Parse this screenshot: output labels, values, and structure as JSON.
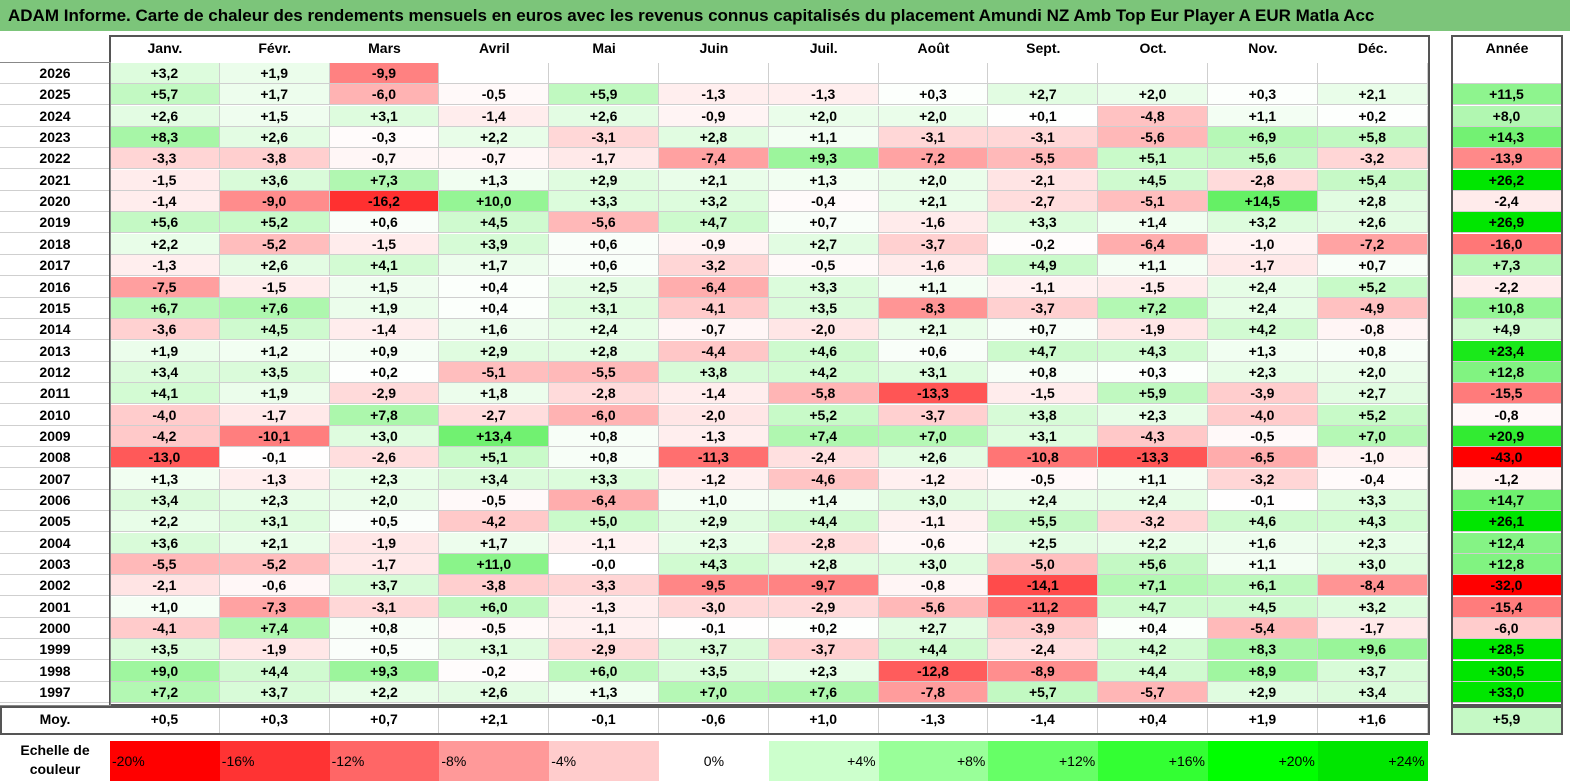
{
  "title": "ADAM Informe. Carte de chaleur des rendements mensuels en euros avec les revenus connus capitalisés du placement Amundi NZ Amb Top Eur Player A EUR Matla Acc",
  "chart_data": {
    "type": "heatmap",
    "columns": [
      "Janv.",
      "Févr.",
      "Mars",
      "Avril",
      "Mai",
      "Juin",
      "Juil.",
      "Août",
      "Sept.",
      "Oct.",
      "Nov.",
      "Déc."
    ],
    "year_column_label": "Année",
    "rows": [
      {
        "year": "2026",
        "months": [
          "+3,2",
          "+1,9",
          "-9,9",
          "",
          "",
          "",
          "",
          "",
          "",
          "",
          "",
          ""
        ],
        "annual": ""
      },
      {
        "year": "2025",
        "months": [
          "+5,7",
          "+1,7",
          "-6,0",
          "-0,5",
          "+5,9",
          "-1,3",
          "-1,3",
          "+0,3",
          "+2,7",
          "+2,0",
          "+0,3",
          "+2,1"
        ],
        "annual": "+11,5"
      },
      {
        "year": "2024",
        "months": [
          "+2,6",
          "+1,5",
          "+3,1",
          "-1,4",
          "+2,6",
          "-0,9",
          "+2,0",
          "+2,0",
          "+0,1",
          "-4,8",
          "+1,1",
          "+0,2"
        ],
        "annual": "+8,0"
      },
      {
        "year": "2023",
        "months": [
          "+8,3",
          "+2,6",
          "-0,3",
          "+2,2",
          "-3,1",
          "+2,8",
          "+1,1",
          "-3,1",
          "-3,1",
          "-5,6",
          "+6,9",
          "+5,8"
        ],
        "annual": "+14,3"
      },
      {
        "year": "2022",
        "months": [
          "-3,3",
          "-3,8",
          "-0,7",
          "-0,7",
          "-1,7",
          "-7,4",
          "+9,3",
          "-7,2",
          "-5,5",
          "+5,1",
          "+5,6",
          "-3,2"
        ],
        "annual": "-13,9"
      },
      {
        "year": "2021",
        "months": [
          "-1,5",
          "+3,6",
          "+7,3",
          "+1,3",
          "+2,9",
          "+2,1",
          "+1,3",
          "+2,0",
          "-2,1",
          "+4,5",
          "-2,8",
          "+5,4"
        ],
        "annual": "+26,2"
      },
      {
        "year": "2020",
        "months": [
          "-1,4",
          "-9,0",
          "-16,2",
          "+10,0",
          "+3,3",
          "+3,2",
          "-0,4",
          "+2,1",
          "-2,7",
          "-5,1",
          "+14,5",
          "+2,8"
        ],
        "annual": "-2,4"
      },
      {
        "year": "2019",
        "months": [
          "+5,6",
          "+5,2",
          "+0,6",
          "+4,5",
          "-5,6",
          "+4,7",
          "+0,7",
          "-1,6",
          "+3,3",
          "+1,4",
          "+3,2",
          "+2,6"
        ],
        "annual": "+26,9"
      },
      {
        "year": "2018",
        "months": [
          "+2,2",
          "-5,2",
          "-1,5",
          "+3,9",
          "+0,6",
          "-0,9",
          "+2,7",
          "-3,7",
          "-0,2",
          "-6,4",
          "-1,0",
          "-7,2"
        ],
        "annual": "-16,0"
      },
      {
        "year": "2017",
        "months": [
          "-1,3",
          "+2,6",
          "+4,1",
          "+1,7",
          "+0,6",
          "-3,2",
          "-0,5",
          "-1,6",
          "+4,9",
          "+1,1",
          "-1,7",
          "+0,7"
        ],
        "annual": "+7,3"
      },
      {
        "year": "2016",
        "months": [
          "-7,5",
          "-1,5",
          "+1,5",
          "+0,4",
          "+2,5",
          "-6,4",
          "+3,3",
          "+1,1",
          "-1,1",
          "-1,5",
          "+2,4",
          "+5,2"
        ],
        "annual": "-2,2"
      },
      {
        "year": "2015",
        "months": [
          "+6,7",
          "+7,6",
          "+1,9",
          "+0,4",
          "+3,1",
          "-4,1",
          "+3,5",
          "-8,3",
          "-3,7",
          "+7,2",
          "+2,4",
          "-4,9"
        ],
        "annual": "+10,8"
      },
      {
        "year": "2014",
        "months": [
          "-3,6",
          "+4,5",
          "-1,4",
          "+1,6",
          "+2,4",
          "-0,7",
          "-2,0",
          "+2,1",
          "+0,7",
          "-1,9",
          "+4,2",
          "-0,8"
        ],
        "annual": "+4,9"
      },
      {
        "year": "2013",
        "months": [
          "+1,9",
          "+1,2",
          "+0,9",
          "+2,9",
          "+2,8",
          "-4,4",
          "+4,6",
          "+0,6",
          "+4,7",
          "+4,3",
          "+1,3",
          "+0,8"
        ],
        "annual": "+23,4"
      },
      {
        "year": "2012",
        "months": [
          "+3,4",
          "+3,5",
          "+0,2",
          "-5,1",
          "-5,5",
          "+3,8",
          "+4,2",
          "+3,1",
          "+0,8",
          "+0,3",
          "+2,3",
          "+2,0"
        ],
        "annual": "+12,8"
      },
      {
        "year": "2011",
        "months": [
          "+4,1",
          "+1,9",
          "-2,9",
          "+1,8",
          "-2,8",
          "-1,4",
          "-5,8",
          "-13,3",
          "-1,5",
          "+5,9",
          "-3,9",
          "+2,7"
        ],
        "annual": "-15,5"
      },
      {
        "year": "2010",
        "months": [
          "-4,0",
          "-1,7",
          "+7,8",
          "-2,7",
          "-6,0",
          "-2,0",
          "+5,2",
          "-3,7",
          "+3,8",
          "+2,3",
          "-4,0",
          "+5,2"
        ],
        "annual": "-0,8"
      },
      {
        "year": "2009",
        "months": [
          "-4,2",
          "-10,1",
          "+3,0",
          "+13,4",
          "+0,8",
          "-1,3",
          "+7,4",
          "+7,0",
          "+3,1",
          "-4,3",
          "-0,5",
          "+7,0"
        ],
        "annual": "+20,9"
      },
      {
        "year": "2008",
        "months": [
          "-13,0",
          "-0,1",
          "-2,6",
          "+5,1",
          "+0,8",
          "-11,3",
          "-2,4",
          "+2,6",
          "-10,8",
          "-13,3",
          "-6,5",
          "-1,0"
        ],
        "annual": "-43,0"
      },
      {
        "year": "2007",
        "months": [
          "+1,3",
          "-1,3",
          "+2,3",
          "+3,4",
          "+3,3",
          "-1,2",
          "-4,6",
          "-1,2",
          "-0,5",
          "+1,1",
          "-3,2",
          "-0,4"
        ],
        "annual": "-1,2"
      },
      {
        "year": "2006",
        "months": [
          "+3,4",
          "+2,3",
          "+2,0",
          "-0,5",
          "-6,4",
          "+1,0",
          "+1,4",
          "+3,0",
          "+2,4",
          "+2,4",
          "-0,1",
          "+3,3"
        ],
        "annual": "+14,7"
      },
      {
        "year": "2005",
        "months": [
          "+2,2",
          "+3,1",
          "+0,5",
          "-4,2",
          "+5,0",
          "+2,9",
          "+4,4",
          "-1,1",
          "+5,5",
          "-3,2",
          "+4,6",
          "+4,3"
        ],
        "annual": "+26,1"
      },
      {
        "year": "2004",
        "months": [
          "+3,6",
          "+2,1",
          "-1,9",
          "+1,7",
          "-1,1",
          "+2,3",
          "-2,8",
          "-0,6",
          "+2,5",
          "+2,2",
          "+1,6",
          "+2,3"
        ],
        "annual": "+12,4"
      },
      {
        "year": "2003",
        "months": [
          "-5,5",
          "-5,2",
          "-1,7",
          "+11,0",
          "-0,0",
          "+4,3",
          "+2,8",
          "+3,0",
          "-5,0",
          "+5,6",
          "+1,1",
          "+3,0"
        ],
        "annual": "+12,8"
      },
      {
        "year": "2002",
        "months": [
          "-2,1",
          "-0,6",
          "+3,7",
          "-3,8",
          "-3,3",
          "-9,5",
          "-9,7",
          "-0,8",
          "-14,1",
          "+7,1",
          "+6,1",
          "-8,4"
        ],
        "annual": "-32,0"
      },
      {
        "year": "2001",
        "months": [
          "+1,0",
          "-7,3",
          "-3,1",
          "+6,0",
          "-1,3",
          "-3,0",
          "-2,9",
          "-5,6",
          "-11,2",
          "+4,7",
          "+4,5",
          "+3,2"
        ],
        "annual": "-15,4"
      },
      {
        "year": "2000",
        "months": [
          "-4,1",
          "+7,4",
          "+0,8",
          "-0,5",
          "-1,1",
          "-0,1",
          "+0,2",
          "+2,7",
          "-3,9",
          "+0,4",
          "-5,4",
          "-1,7"
        ],
        "annual": "-6,0"
      },
      {
        "year": "1999",
        "months": [
          "+3,5",
          "-1,9",
          "+0,5",
          "+3,1",
          "-2,9",
          "+3,7",
          "-3,7",
          "+4,4",
          "-2,4",
          "+4,2",
          "+8,3",
          "+9,6"
        ],
        "annual": "+28,5"
      },
      {
        "year": "1998",
        "months": [
          "+9,0",
          "+4,4",
          "+9,3",
          "-0,2",
          "+6,0",
          "+3,5",
          "+2,3",
          "-12,8",
          "-8,9",
          "+4,4",
          "+8,9",
          "+3,7"
        ],
        "annual": "+30,5"
      },
      {
        "year": "1997",
        "months": [
          "+7,2",
          "+3,7",
          "+2,2",
          "+2,6",
          "+1,3",
          "+7,0",
          "+7,6",
          "-7,8",
          "+5,7",
          "-5,7",
          "+2,9",
          "+3,4"
        ],
        "annual": "+33,0"
      }
    ],
    "average": {
      "label": "Moy.",
      "months": [
        "+0,5",
        "+0,3",
        "+0,7",
        "+2,1",
        "-0,1",
        "-0,6",
        "+1,0",
        "-1,3",
        "-1,4",
        "+0,4",
        "+1,9",
        "+1,6"
      ],
      "annual": "+5,9"
    },
    "scale": {
      "label_line1": "Echelle de",
      "label_line2": "couleur",
      "steps": [
        {
          "label": "-20%",
          "value": -20,
          "color": "#ff0000"
        },
        {
          "label": "-16%",
          "value": -16,
          "color": "#ff3333"
        },
        {
          "label": "-12%",
          "value": -12,
          "color": "#ff6666"
        },
        {
          "label": "-8%",
          "value": -8,
          "color": "#ff9999"
        },
        {
          "label": "-4%",
          "value": -4,
          "color": "#ffcccc"
        },
        {
          "label": "0%",
          "value": 0,
          "color": "#ffffff"
        },
        {
          "label": "+4%",
          "value": 4,
          "color": "#ccffcc"
        },
        {
          "label": "+8%",
          "value": 8,
          "color": "#99ff99"
        },
        {
          "label": "+12%",
          "value": 12,
          "color": "#66ff66"
        },
        {
          "label": "+16%",
          "value": 16,
          "color": "#33ff33"
        },
        {
          "label": "+20%",
          "value": 20,
          "color": "#00ff00"
        },
        {
          "label": "+24%",
          "value": 24,
          "color": "#00e600"
        }
      ]
    },
    "colors": {
      "title_bg": "#7cc57a",
      "negative_max": "#ff0000",
      "positive_max": "#00e600"
    }
  }
}
